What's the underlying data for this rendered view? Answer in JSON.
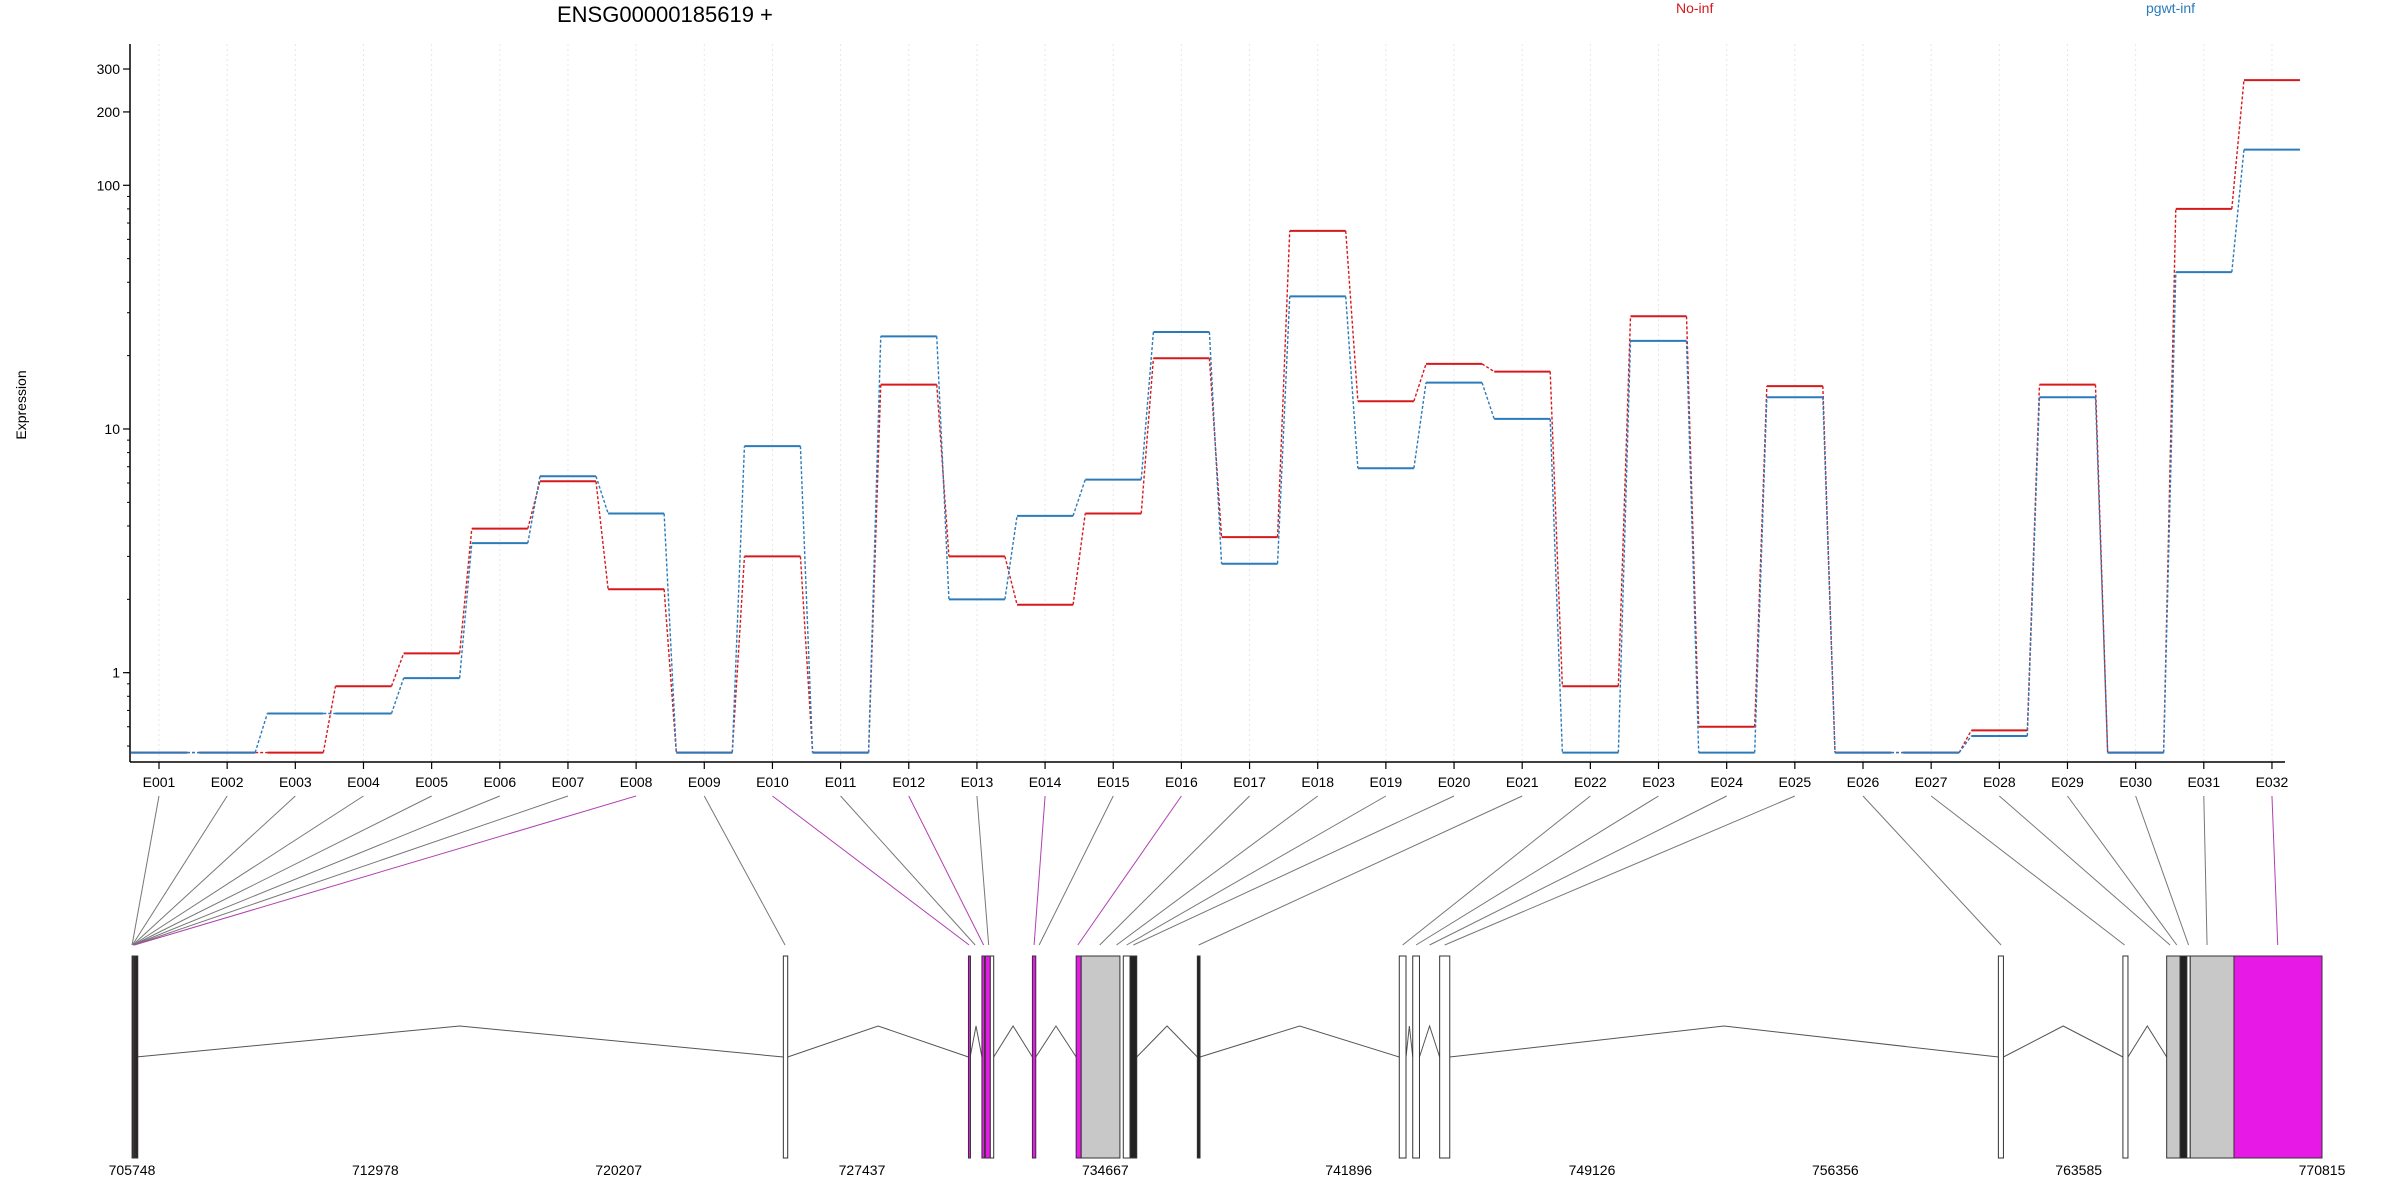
{
  "chart_data": {
    "type": "line",
    "title": "ENSG00000185619 +",
    "ylabel": "Expression",
    "yscale": "log",
    "ylim": [
      0.43,
      380
    ],
    "yticks": [
      {
        "value": 1,
        "label": "1"
      },
      {
        "value": 10,
        "label": "10"
      },
      {
        "value": 100,
        "label": "100"
      },
      {
        "value": 200,
        "label": "200"
      },
      {
        "value": 300,
        "label": "300"
      }
    ],
    "categories": [
      "E001",
      "E002",
      "E003",
      "E004",
      "E005",
      "E006",
      "E007",
      "E008",
      "E009",
      "E010",
      "E011",
      "E012",
      "E013",
      "E014",
      "E015",
      "E016",
      "E017",
      "E018",
      "E019",
      "E020",
      "E021",
      "E022",
      "E023",
      "E024",
      "E025",
      "E026",
      "E027",
      "E028",
      "E029",
      "E030",
      "E031",
      "E032"
    ],
    "series": [
      {
        "name": "No-inf",
        "color": "#d7191c",
        "values": [
          0.47,
          0.47,
          0.47,
          0.88,
          1.2,
          3.9,
          6.1,
          2.2,
          0.47,
          3.0,
          0.47,
          15.2,
          3.0,
          1.9,
          4.5,
          19.5,
          3.6,
          65,
          13,
          18.5,
          17.2,
          0.88,
          29,
          0.6,
          15,
          0.47,
          0.47,
          0.58,
          15.2,
          0.47,
          80,
          270
        ]
      },
      {
        "name": "pgwt-inf",
        "color": "#2b7bba",
        "values": [
          0.47,
          0.47,
          0.68,
          0.68,
          0.95,
          3.4,
          6.4,
          4.5,
          0.47,
          8.5,
          0.47,
          24,
          2.0,
          4.4,
          6.2,
          25,
          2.8,
          35,
          6.9,
          15.5,
          11,
          0.47,
          23,
          0.47,
          13.5,
          0.47,
          0.47,
          0.55,
          13.5,
          0.47,
          44,
          140
        ]
      }
    ],
    "legend_position": "top",
    "gene_model": {
      "axis_ticks": [
        "705748",
        "712978",
        "720207",
        "727437",
        "734667",
        "741896",
        "749126",
        "756356",
        "763585",
        "770815"
      ],
      "coord_range": [
        705748,
        770815
      ],
      "exons": [
        {
          "start": 705750,
          "end": 705760,
          "fill": "#222222"
        },
        {
          "start": 705780,
          "end": 705790,
          "fill": "#e619e6"
        },
        {
          "start": 705810,
          "end": 705830,
          "fill": "#222222"
        },
        {
          "start": 705860,
          "end": 705870,
          "fill": "#222222"
        },
        {
          "start": 725100,
          "end": 725230,
          "fill": "#ffffff"
        },
        {
          "start": 730600,
          "end": 730650,
          "fill": "#e619e6"
        },
        {
          "start": 731000,
          "end": 731080,
          "fill": "#e619e6"
        },
        {
          "start": 731100,
          "end": 731250,
          "fill": "#e619e6"
        },
        {
          "start": 731250,
          "end": 731350,
          "fill": "#ffffff"
        },
        {
          "start": 732500,
          "end": 732600,
          "fill": "#e619e6"
        },
        {
          "start": 733800,
          "end": 733950,
          "fill": "#e619e6"
        },
        {
          "start": 733950,
          "end": 735100,
          "fill": "#c8c8c8"
        },
        {
          "start": 735200,
          "end": 735400,
          "fill": "#ffffff"
        },
        {
          "start": 735400,
          "end": 735600,
          "fill": "#222222"
        },
        {
          "start": 737400,
          "end": 737480,
          "fill": "#222222"
        },
        {
          "start": 743400,
          "end": 743600,
          "fill": "#ffffff"
        },
        {
          "start": 743800,
          "end": 744000,
          "fill": "#ffffff"
        },
        {
          "start": 744600,
          "end": 744900,
          "fill": "#ffffff"
        },
        {
          "start": 761200,
          "end": 761350,
          "fill": "#ffffff"
        },
        {
          "start": 764900,
          "end": 765050,
          "fill": "#ffffff"
        },
        {
          "start": 766200,
          "end": 766600,
          "fill": "#c8c8c8"
        },
        {
          "start": 766600,
          "end": 766800,
          "fill": "#222222"
        },
        {
          "start": 766800,
          "end": 766900,
          "fill": "#ffffff"
        },
        {
          "start": 766900,
          "end": 768200,
          "fill": "#c8c8c8"
        },
        {
          "start": 768200,
          "end": 770815,
          "fill": "#e619e6"
        }
      ],
      "introns": [
        [
          705870,
          725100
        ],
        [
          725230,
          730600
        ],
        [
          730650,
          731000
        ],
        [
          731350,
          732500
        ],
        [
          732600,
          733800
        ],
        [
          735600,
          737400
        ],
        [
          737480,
          743400
        ],
        [
          743600,
          743800
        ],
        [
          744000,
          744600
        ],
        [
          744900,
          761200
        ],
        [
          761350,
          764900
        ],
        [
          765050,
          766200
        ]
      ],
      "connectors": [
        {
          "exon": "E001",
          "coord": 705750,
          "color": "#777777"
        },
        {
          "exon": "E002",
          "coord": 705760,
          "color": "#777777"
        },
        {
          "exon": "E003",
          "coord": 705770,
          "color": "#777777"
        },
        {
          "exon": "E004",
          "coord": 705780,
          "color": "#777777"
        },
        {
          "exon": "E005",
          "coord": 705790,
          "color": "#777777"
        },
        {
          "exon": "E006",
          "coord": 705800,
          "color": "#777777"
        },
        {
          "exon": "E007",
          "coord": 705810,
          "color": "#777777"
        },
        {
          "exon": "E008",
          "coord": 705820,
          "color": "#b040b0"
        },
        {
          "exon": "E009",
          "coord": 725150,
          "color": "#777777"
        },
        {
          "exon": "E010",
          "coord": 730620,
          "color": "#b040b0"
        },
        {
          "exon": "E011",
          "coord": 730800,
          "color": "#777777"
        },
        {
          "exon": "E012",
          "coord": 731050,
          "color": "#b040b0"
        },
        {
          "exon": "E013",
          "coord": 731200,
          "color": "#777777"
        },
        {
          "exon": "E014",
          "coord": 732550,
          "color": "#b040b0"
        },
        {
          "exon": "E015",
          "coord": 732700,
          "color": "#777777"
        },
        {
          "exon": "E016",
          "coord": 733850,
          "color": "#b040b0"
        },
        {
          "exon": "E017",
          "coord": 734500,
          "color": "#777777"
        },
        {
          "exon": "E018",
          "coord": 735000,
          "color": "#777777"
        },
        {
          "exon": "E019",
          "coord": 735300,
          "color": "#777777"
        },
        {
          "exon": "E020",
          "coord": 735500,
          "color": "#777777"
        },
        {
          "exon": "E021",
          "coord": 737440,
          "color": "#777777"
        },
        {
          "exon": "E022",
          "coord": 743500,
          "color": "#777777"
        },
        {
          "exon": "E023",
          "coord": 743900,
          "color": "#777777"
        },
        {
          "exon": "E024",
          "coord": 744300,
          "color": "#777777"
        },
        {
          "exon": "E025",
          "coord": 744750,
          "color": "#777777"
        },
        {
          "exon": "E026",
          "coord": 761280,
          "color": "#777777"
        },
        {
          "exon": "E027",
          "coord": 764950,
          "color": "#777777"
        },
        {
          "exon": "E028",
          "coord": 766300,
          "color": "#777777"
        },
        {
          "exon": "E029",
          "coord": 766500,
          "color": "#777777"
        },
        {
          "exon": "E030",
          "coord": 766850,
          "color": "#777777"
        },
        {
          "exon": "E031",
          "coord": 767400,
          "color": "#777777"
        },
        {
          "exon": "E032",
          "coord": 769500,
          "color": "#b040b0"
        }
      ]
    }
  }
}
